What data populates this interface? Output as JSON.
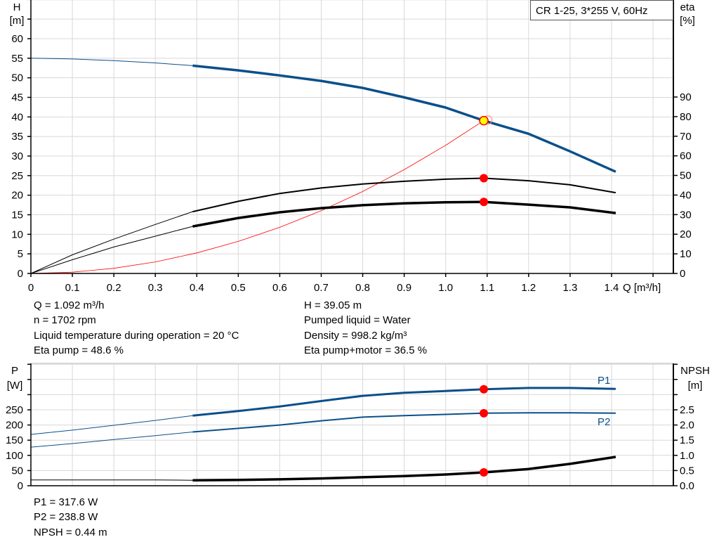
{
  "chart_data": [
    {
      "type": "line",
      "title": "CR 1-25, 3*255 V, 60Hz",
      "xlabel": "Q [m³/h]",
      "ylabel": "H",
      "ylabel_unit": "[m]",
      "y2label": "eta",
      "y2label_unit": "[%]",
      "xlim": [
        0,
        1.5
      ],
      "ylim": [
        0,
        70
      ],
      "y2lim": [
        0,
        140
      ],
      "x_ticks": [
        "0",
        "0.1",
        "0.2",
        "0.3",
        "0.4",
        "0.5",
        "0.6",
        "0.7",
        "0.8",
        "0.9",
        "1.0",
        "1.1",
        "1.2",
        "1.3",
        "1.4"
      ],
      "y_ticks": [
        "0",
        "5",
        "10",
        "15",
        "20",
        "25",
        "30",
        "35",
        "40",
        "45",
        "50",
        "55",
        "60"
      ],
      "y2_ticks": [
        "0",
        "10",
        "20",
        "30",
        "40",
        "50",
        "60",
        "70",
        "80",
        "90"
      ],
      "grid": true,
      "operating_point": {
        "Q": 1.092,
        "H": 39.05,
        "eta_pump": 48.6,
        "eta_pump_motor": 36.5
      },
      "series": [
        {
          "axis": "H",
          "color": "#0b4f8a",
          "x": [
            0,
            0.1,
            0.2,
            0.3,
            0.39,
            0.5,
            0.6,
            0.7,
            0.8,
            0.9,
            1.0,
            1.092,
            1.2,
            1.3,
            1.41
          ],
          "y": [
            55,
            54.8,
            54.4,
            53.8,
            53.1,
            51.9,
            50.6,
            49.2,
            47.4,
            45.0,
            42.4,
            39.05,
            35.7,
            31.2,
            26.0
          ]
        },
        {
          "axis": "H",
          "color": "#ff0000",
          "x": [
            0,
            0.1,
            0.2,
            0.3,
            0.4,
            0.5,
            0.6,
            0.7,
            0.8,
            0.9,
            1.0,
            1.092,
            1.1
          ],
          "y": [
            0,
            0.33,
            1.31,
            2.95,
            5.24,
            8.19,
            11.79,
            16.04,
            20.95,
            26.52,
            32.75,
            39.05,
            39.63
          ]
        },
        {
          "axis": "eta",
          "color": "#000000",
          "x": [
            0,
            0.1,
            0.2,
            0.3,
            0.39,
            0.5,
            0.6,
            0.7,
            0.8,
            0.9,
            1.0,
            1.092,
            1.2,
            1.3,
            1.41
          ],
          "y": [
            0,
            9.5,
            17.5,
            25,
            31.5,
            36.8,
            40.8,
            43.6,
            45.6,
            47.0,
            48.1,
            48.6,
            47.3,
            45.2,
            41.2
          ]
        },
        {
          "axis": "eta",
          "color": "#000000",
          "x": [
            0,
            0.1,
            0.2,
            0.3,
            0.39,
            0.5,
            0.6,
            0.7,
            0.8,
            0.9,
            1.0,
            1.092,
            1.2,
            1.3,
            1.41
          ],
          "y": [
            0,
            7,
            13.5,
            19,
            24,
            28.3,
            31.2,
            33.3,
            34.8,
            35.8,
            36.3,
            36.5,
            35.1,
            33.7,
            30.8
          ]
        }
      ]
    },
    {
      "type": "line",
      "ylabel": "P",
      "ylabel_unit": "[W]",
      "y2label": "NPSH",
      "y2label_unit": "[m]",
      "xlim": [
        0,
        1.5
      ],
      "ylim": [
        0,
        400
      ],
      "y2lim": [
        0,
        4
      ],
      "y_ticks": [
        "0",
        "50",
        "100",
        "150",
        "200",
        "250"
      ],
      "y2_ticks": [
        "0.0",
        "0.5",
        "1.0",
        "1.5",
        "2.0",
        "2.5"
      ],
      "grid": true,
      "operating_point": {
        "Q": 1.092,
        "P1": 317.6,
        "P2": 238.8,
        "NPSH": 0.44
      },
      "series": [
        {
          "name": "P1",
          "axis": "P",
          "color": "#0b4f8a",
          "x": [
            0,
            0.1,
            0.2,
            0.3,
            0.39,
            0.5,
            0.6,
            0.7,
            0.8,
            0.9,
            1.0,
            1.092,
            1.2,
            1.3,
            1.41
          ],
          "y": [
            169,
            183,
            199,
            215,
            231,
            246,
            261,
            279,
            296,
            306,
            312,
            317.6,
            322,
            322,
            319
          ]
        },
        {
          "name": "P2",
          "axis": "P",
          "color": "#0b4f8a",
          "x": [
            0,
            0.1,
            0.2,
            0.3,
            0.39,
            0.5,
            0.6,
            0.7,
            0.8,
            0.9,
            1.0,
            1.092,
            1.2,
            1.3,
            1.41
          ],
          "y": [
            127,
            139,
            152,
            165,
            177,
            189,
            200,
            214,
            226,
            231,
            235,
            238.8,
            240,
            240,
            239
          ]
        },
        {
          "axis": "NPSH",
          "color": "#000000",
          "x": [
            0,
            0.1,
            0.2,
            0.3,
            0.39,
            0.5,
            0.6,
            0.7,
            0.8,
            0.9,
            1.0,
            1.092,
            1.2,
            1.3,
            1.41
          ],
          "y": [
            0.19,
            0.19,
            0.19,
            0.19,
            0.18,
            0.19,
            0.21,
            0.24,
            0.28,
            0.32,
            0.37,
            0.44,
            0.55,
            0.72,
            0.95
          ]
        }
      ]
    }
  ],
  "info_top_left": [
    "Q = 1.092 m³/h",
    "n = 1702 rpm",
    "Liquid temperature during operation = 20 °C",
    "Eta pump = 48.6 %"
  ],
  "info_top_right": [
    "H = 39.05 m",
    "Pumped liquid = Water",
    "Density = 998.2 kg/m³",
    "Eta pump+motor = 36.5 %"
  ],
  "info_bottom": [
    "P1 = 317.6 W",
    "P2 = 238.8 W",
    "NPSH = 0.44 m"
  ],
  "colors": {
    "head": "#0b4f8a",
    "system": "#ff0000",
    "point": "#ff0000",
    "duty_fill": "#ffff00",
    "grid": "#d8d8d8"
  }
}
